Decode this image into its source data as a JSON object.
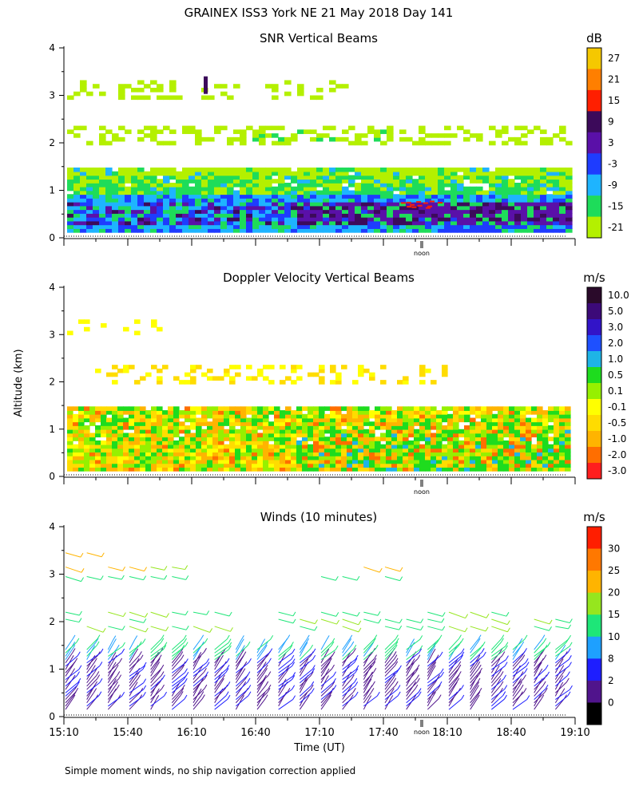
{
  "figure": {
    "title": "GRAINEX ISS3 York NE  21 May 2018 Day 141",
    "ylabel": "Altitude (km)",
    "xlabel": "Time (UT)",
    "footnote": "Simple moment winds, no ship navigation correction applied",
    "noon_label": "noon",
    "time_ticks": [
      "15:10",
      "15:40",
      "16:10",
      "16:40",
      "17:10",
      "17:40",
      "18:10",
      "18:40",
      "19:10"
    ],
    "alt_ticks": [
      "0",
      "1",
      "2",
      "3",
      "4"
    ]
  },
  "chart_data": [
    {
      "type": "heatmap",
      "title": "SNR Vertical Beams",
      "xlabel": "Time (UT)",
      "ylabel": "Altitude (km)",
      "xlim": [
        "15:10",
        "19:10"
      ],
      "ylim": [
        0,
        4
      ],
      "colorbar": {
        "unit": "dB",
        "labels": [
          "27",
          "21",
          "15",
          "9",
          "3",
          "-3",
          "-9",
          "-15",
          "-21"
        ],
        "colors": [
          "#f5c800",
          "#ff7f00",
          "#ff1f00",
          "#3c0a5a",
          "#5a10a8",
          "#1e3cff",
          "#1eb4ff",
          "#1edc5a",
          "#b4f000"
        ]
      },
      "layers": [
        {
          "alt_range_km": [
            0.1,
            0.9
          ],
          "level_db": "-9 to 9",
          "note": "strong returns below 1 km, intensifying after 17:30"
        },
        {
          "alt_range_km": [
            0.9,
            1.45
          ],
          "level_db": "-15 to -9"
        },
        {
          "alt_range_km": [
            1.9,
            2.3
          ],
          "level_db": "-21 to -15"
        },
        {
          "alt_range_km": [
            2.9,
            3.3
          ],
          "level_db": "-21"
        }
      ]
    },
    {
      "type": "heatmap",
      "title": "Doppler Velocity Vertical Beams",
      "xlabel": "Time (UT)",
      "ylabel": "Altitude (km)",
      "xlim": [
        "15:10",
        "19:10"
      ],
      "ylim": [
        0,
        4
      ],
      "colorbar": {
        "unit": "m/s",
        "labels": [
          "10.0",
          "5.0",
          "3.0",
          "2.0",
          "1.0",
          "0.5",
          "0.1",
          "-0.1",
          "-0.5",
          "-1.0",
          "-2.0",
          "-3.0"
        ],
        "colors": [
          "#2a0a2a",
          "#3c0a78",
          "#3214c8",
          "#1e50ff",
          "#1eb4e6",
          "#1edc1e",
          "#96f000",
          "#ffff00",
          "#ffdc00",
          "#ffb400",
          "#ff6e00",
          "#ff1e1e"
        ]
      },
      "layers": [
        {
          "alt_range_km": [
            0.1,
            1.45
          ],
          "velocity_ms": "-1.0 to 0.5"
        },
        {
          "alt_range_km": [
            1.95,
            2.3
          ],
          "velocity_ms": "-0.5 to -0.1"
        },
        {
          "alt_range_km": [
            3.0,
            3.2
          ],
          "velocity_ms": "-0.5"
        }
      ]
    },
    {
      "type": "scatter",
      "title": "Winds (10 minutes)",
      "xlabel": "Time (UT)",
      "ylabel": "Altitude (km)",
      "xlim": [
        "15:10",
        "19:10"
      ],
      "ylim": [
        0,
        4
      ],
      "colorbar": {
        "unit": "m/s",
        "labels": [
          "30",
          "25",
          "20",
          "15",
          "10",
          "8",
          "2",
          "0"
        ],
        "colors": [
          "#ff1e00",
          "#ff7800",
          "#ffb400",
          "#96e61e",
          "#1ee678",
          "#1ea0ff",
          "#1e1eff",
          "#50148c",
          "#000000"
        ]
      },
      "barb_columns": [
        "15:10",
        "15:20",
        "15:30",
        "15:40",
        "15:50",
        "16:00",
        "16:10",
        "16:20",
        "16:30",
        "16:40",
        "16:50",
        "17:00",
        "17:10",
        "17:20",
        "17:30",
        "17:40",
        "17:50",
        "18:00",
        "18:10",
        "18:20",
        "18:30",
        "18:40",
        "18:50",
        "19:00"
      ]
    }
  ]
}
